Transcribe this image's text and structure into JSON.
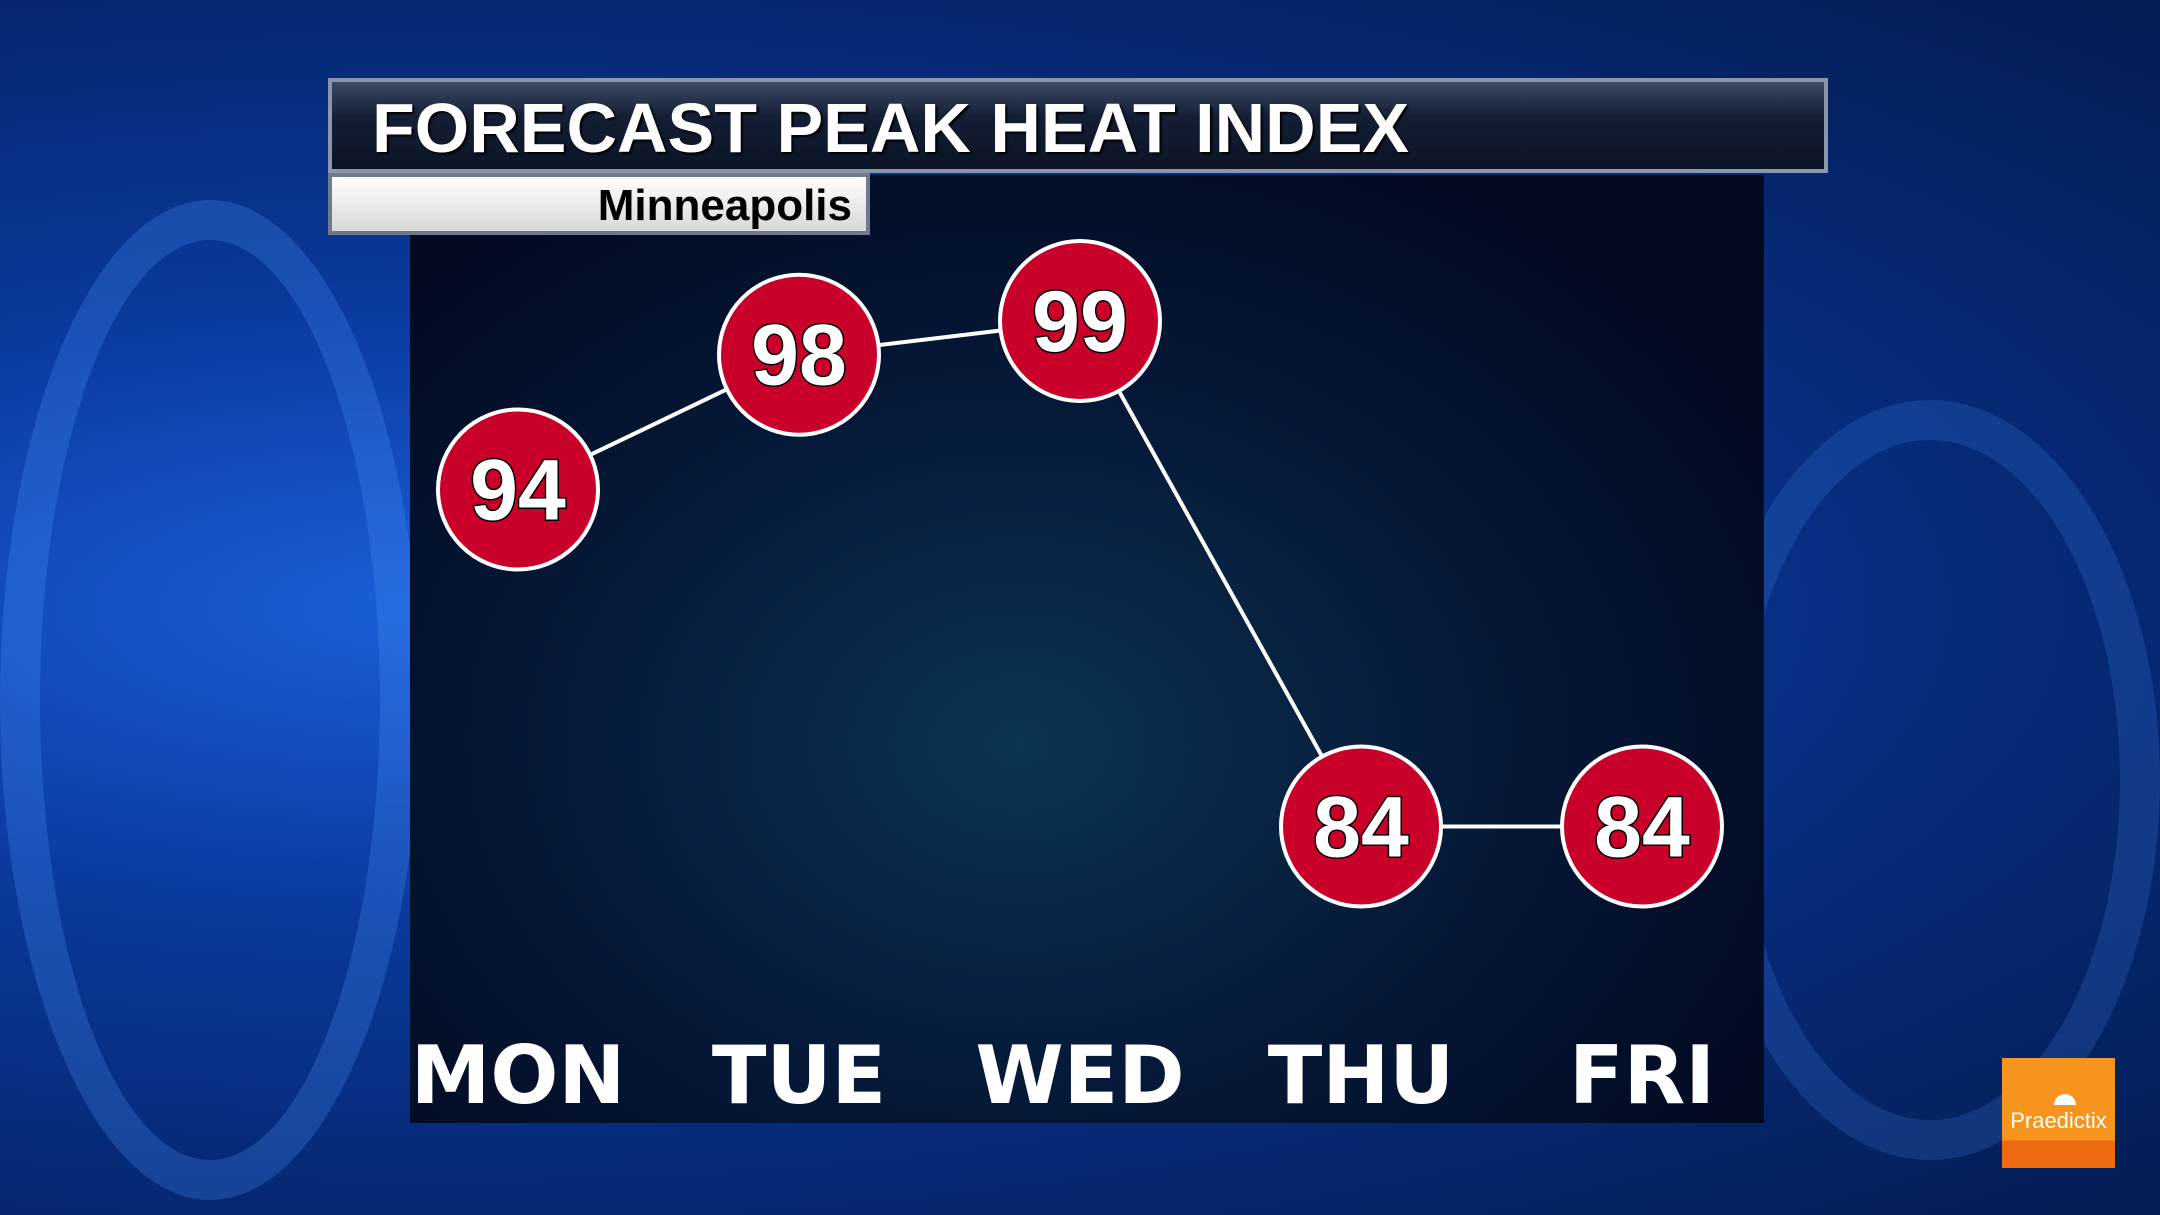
{
  "header": {
    "title": "FORECAST PEAK HEAT INDEX",
    "subtitle": "Minneapolis"
  },
  "logo": {
    "text": "Praedictix"
  },
  "colors": {
    "marker_fill": "#c8002a",
    "marker_stroke": "#ffffff",
    "line": "#ffffff",
    "logo": "#f7941d"
  },
  "chart_data": {
    "type": "line",
    "title": "FORECAST PEAK HEAT INDEX",
    "subtitle": "Minneapolis",
    "categories": [
      "MON",
      "TUE",
      "WED",
      "THU",
      "FRI"
    ],
    "values": [
      94,
      98,
      99,
      84,
      84
    ],
    "data_labels": [
      "94",
      "98",
      "99",
      "84",
      "84"
    ],
    "grid": false
  }
}
